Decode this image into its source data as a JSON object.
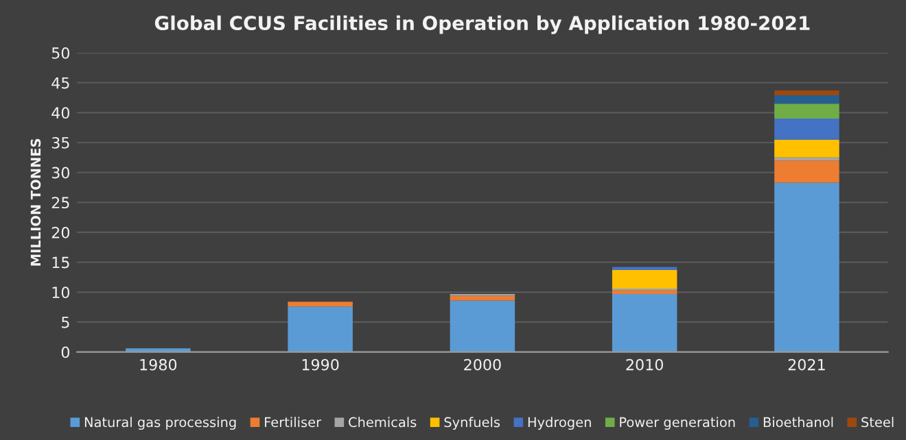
{
  "chart_data": {
    "type": "bar",
    "title": "Global CCUS Facilities in Operation by Application 1980-2021",
    "ylabel": "MILLION TONNES",
    "categories": [
      "1980",
      "1990",
      "2000",
      "2010",
      "2021"
    ],
    "stacked": true,
    "ylim": [
      0,
      50
    ],
    "yticks": [
      0,
      5,
      10,
      15,
      20,
      25,
      30,
      35,
      40,
      45,
      50
    ],
    "grid": "y",
    "legend": "bottom",
    "series": [
      {
        "name": "Natural gas processing",
        "color": "#5b9bd5",
        "values": [
          0.6,
          7.6,
          8.6,
          9.7,
          28.3
        ]
      },
      {
        "name": "Fertiliser",
        "color": "#ed7d31",
        "values": [
          null,
          0.8,
          0.8,
          0.6,
          3.7
        ]
      },
      {
        "name": "Chemicals",
        "color": "#a5a5a5",
        "values": [
          null,
          null,
          0.3,
          0.3,
          0.5
        ]
      },
      {
        "name": "Synfuels",
        "color": "#ffc000",
        "values": [
          null,
          null,
          null,
          3.1,
          3.0
        ]
      },
      {
        "name": "Hydrogen",
        "color": "#4472c4",
        "values": [
          null,
          null,
          null,
          0.5,
          3.5
        ]
      },
      {
        "name": "Power generation",
        "color": "#70ad47",
        "values": [
          null,
          null,
          null,
          null,
          2.5
        ]
      },
      {
        "name": "Bioethanol",
        "color": "#255e91",
        "values": [
          null,
          null,
          null,
          null,
          1.4
        ]
      },
      {
        "name": "Steel",
        "color": "#9e480e",
        "values": [
          null,
          null,
          null,
          null,
          0.8
        ]
      }
    ]
  }
}
